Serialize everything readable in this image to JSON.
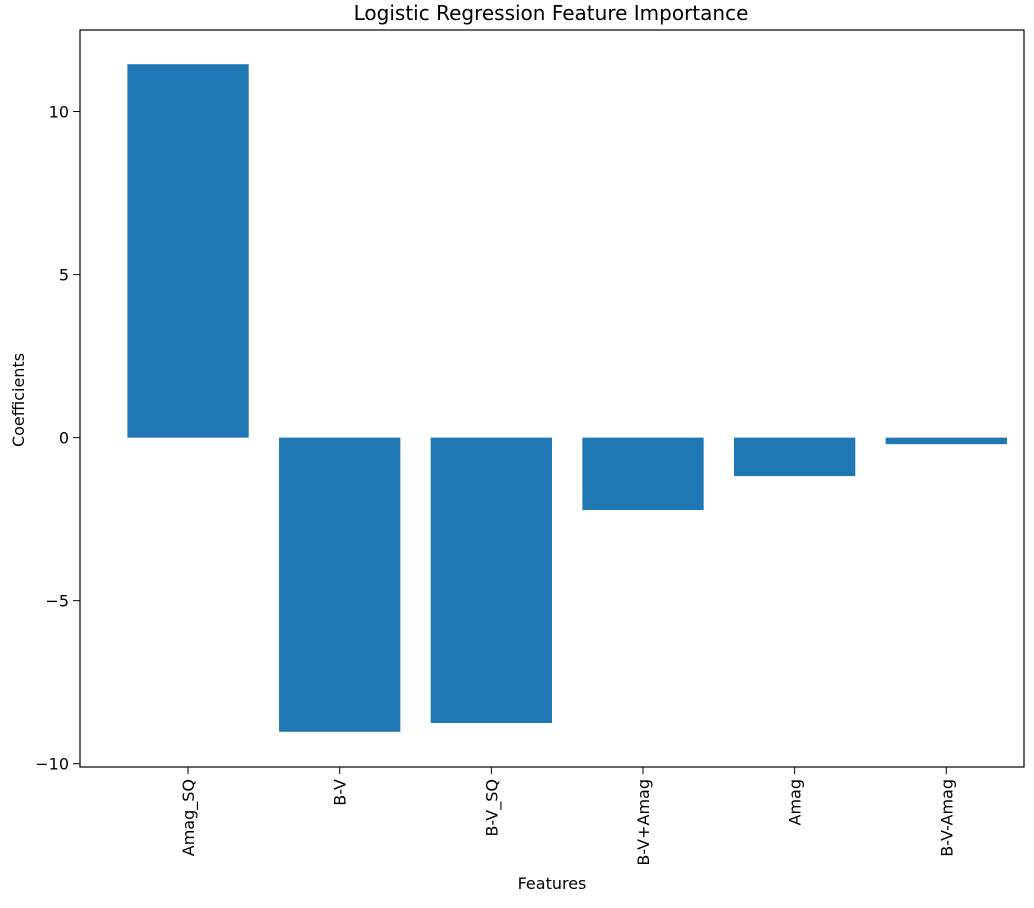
{
  "chart_data": {
    "type": "bar",
    "title": "Logistic Regression Feature Importance",
    "xlabel": "Features",
    "ylabel": "Coefficients",
    "categories": [
      "Amag_SQ",
      "B-V",
      "B-V_SQ",
      "B-V+Amag",
      "Amag",
      "B-V-Amag"
    ],
    "values": [
      11.45,
      -9.02,
      -8.75,
      -2.22,
      -1.18,
      -0.2
    ],
    "ylim": [
      -10.1,
      12.5
    ],
    "yticks": [
      -10,
      -5,
      0,
      5,
      10
    ],
    "ytick_labels": [
      "−10",
      "−5",
      "0",
      "5",
      "10"
    ],
    "grid": false,
    "legend": "none",
    "bar_color": "#1f77b4"
  }
}
